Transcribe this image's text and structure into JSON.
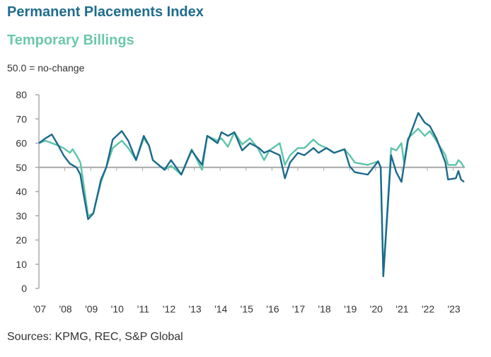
{
  "chart_data": {
    "type": "line",
    "title": "Permanent Placements Index",
    "subtitle": "50.0 = no-change",
    "xlabel": "",
    "ylabel": "",
    "ylim": [
      0,
      80
    ],
    "xlim": [
      2007,
      2023.45
    ],
    "yticks": [
      0,
      10,
      20,
      30,
      40,
      50,
      60,
      70,
      80
    ],
    "xticks": [
      2007,
      2008,
      2009,
      2010,
      2011,
      2012,
      2013,
      2014,
      2015,
      2016,
      2017,
      2018,
      2019,
      2020,
      2021,
      2022,
      2023
    ],
    "xtick_labels": [
      "'07",
      "'08",
      "'09",
      "'10",
      "'11",
      "'12",
      "'13",
      "'14",
      "'15",
      "'16",
      "'17",
      "'18",
      "'19",
      "'20",
      "'21",
      "'22",
      "'23"
    ],
    "reference_line": 50,
    "series": [
      {
        "name": "Permanent Placements Index",
        "color": "#1b6a8c",
        "points": [
          [
            2007.0,
            60
          ],
          [
            2007.25,
            62
          ],
          [
            2007.5,
            63.6
          ],
          [
            2007.75,
            59
          ],
          [
            2007.95,
            55
          ],
          [
            2008.2,
            51.5
          ],
          [
            2008.45,
            50
          ],
          [
            2008.6,
            47
          ],
          [
            2008.7,
            40.5
          ],
          [
            2008.9,
            28.6
          ],
          [
            2009.1,
            31
          ],
          [
            2009.4,
            45
          ],
          [
            2009.6,
            50
          ],
          [
            2009.85,
            61.5
          ],
          [
            2010.2,
            65
          ],
          [
            2010.45,
            61
          ],
          [
            2010.75,
            53
          ],
          [
            2011.05,
            63
          ],
          [
            2011.25,
            59
          ],
          [
            2011.4,
            53
          ],
          [
            2011.85,
            49
          ],
          [
            2012.1,
            53
          ],
          [
            2012.5,
            47
          ],
          [
            2012.9,
            57
          ],
          [
            2013.3,
            51
          ],
          [
            2013.5,
            63
          ],
          [
            2013.9,
            60
          ],
          [
            2014.05,
            64.5
          ],
          [
            2014.3,
            63
          ],
          [
            2014.55,
            64.5
          ],
          [
            2014.85,
            57
          ],
          [
            2015.15,
            60
          ],
          [
            2015.5,
            58
          ],
          [
            2015.7,
            56
          ],
          [
            2015.9,
            57
          ],
          [
            2016.3,
            55
          ],
          [
            2016.5,
            45.5
          ],
          [
            2016.7,
            52
          ],
          [
            2017.0,
            56
          ],
          [
            2017.25,
            55
          ],
          [
            2017.6,
            58
          ],
          [
            2017.8,
            56
          ],
          [
            2018.1,
            58
          ],
          [
            2018.4,
            56
          ],
          [
            2018.8,
            57.5
          ],
          [
            2019.0,
            50.5
          ],
          [
            2019.2,
            48
          ],
          [
            2019.7,
            47
          ],
          [
            2020.1,
            52.5
          ],
          [
            2020.2,
            50
          ],
          [
            2020.3,
            5
          ],
          [
            2020.6,
            55
          ],
          [
            2020.8,
            48
          ],
          [
            2021.0,
            44
          ],
          [
            2021.25,
            61
          ],
          [
            2021.65,
            72.5
          ],
          [
            2021.9,
            68.5
          ],
          [
            2022.1,
            67
          ],
          [
            2022.35,
            62
          ],
          [
            2022.7,
            52
          ],
          [
            2022.8,
            45
          ],
          [
            2023.1,
            45.5
          ],
          [
            2023.2,
            48.5
          ],
          [
            2023.3,
            45
          ],
          [
            2023.42,
            44
          ]
        ]
      },
      {
        "name": "Temporary Billings",
        "color": "#5cc4a8",
        "points": [
          [
            2007.0,
            60
          ],
          [
            2007.25,
            61
          ],
          [
            2007.5,
            60
          ],
          [
            2007.75,
            59
          ],
          [
            2007.95,
            58
          ],
          [
            2008.2,
            56
          ],
          [
            2008.3,
            57.5
          ],
          [
            2008.45,
            55
          ],
          [
            2008.6,
            52
          ],
          [
            2008.7,
            45
          ],
          [
            2008.9,
            30
          ],
          [
            2009.1,
            31
          ],
          [
            2009.4,
            44
          ],
          [
            2009.6,
            50
          ],
          [
            2009.85,
            58
          ],
          [
            2010.2,
            61
          ],
          [
            2010.45,
            58
          ],
          [
            2010.75,
            53
          ],
          [
            2011.05,
            62
          ],
          [
            2011.25,
            59
          ],
          [
            2011.4,
            53
          ],
          [
            2011.85,
            49
          ],
          [
            2012.1,
            50.7
          ],
          [
            2012.5,
            47
          ],
          [
            2012.9,
            57.5
          ],
          [
            2013.3,
            49
          ],
          [
            2013.5,
            63
          ],
          [
            2013.9,
            61
          ],
          [
            2014.05,
            62
          ],
          [
            2014.3,
            58.5
          ],
          [
            2014.55,
            64.5
          ],
          [
            2014.85,
            59.5
          ],
          [
            2015.15,
            62
          ],
          [
            2015.45,
            58
          ],
          [
            2015.7,
            53
          ],
          [
            2015.9,
            57
          ],
          [
            2016.3,
            60
          ],
          [
            2016.5,
            51
          ],
          [
            2016.7,
            55
          ],
          [
            2017.0,
            58
          ],
          [
            2017.25,
            58
          ],
          [
            2017.6,
            61.5
          ],
          [
            2017.8,
            59.5
          ],
          [
            2018.1,
            58
          ],
          [
            2018.4,
            56
          ],
          [
            2018.8,
            57.5
          ],
          [
            2019.0,
            55
          ],
          [
            2019.2,
            52
          ],
          [
            2019.7,
            51
          ],
          [
            2020.1,
            52.5
          ],
          [
            2020.2,
            50
          ],
          [
            2020.3,
            6
          ],
          [
            2020.6,
            58
          ],
          [
            2020.8,
            57
          ],
          [
            2021.0,
            60
          ],
          [
            2021.1,
            52
          ],
          [
            2021.25,
            62
          ],
          [
            2021.65,
            66
          ],
          [
            2021.9,
            63
          ],
          [
            2022.1,
            65
          ],
          [
            2022.35,
            61
          ],
          [
            2022.7,
            55
          ],
          [
            2022.8,
            51
          ],
          [
            2023.1,
            51
          ],
          [
            2023.2,
            53
          ],
          [
            2023.3,
            52
          ],
          [
            2023.42,
            50
          ]
        ]
      }
    ]
  },
  "header": {
    "title_perm": "Permanent Placements Index",
    "title_temp": "Temporary Billings",
    "note": "50.0 = no-change"
  },
  "footer": {
    "source": "Sources: KPMG, REC, S&P Global"
  }
}
